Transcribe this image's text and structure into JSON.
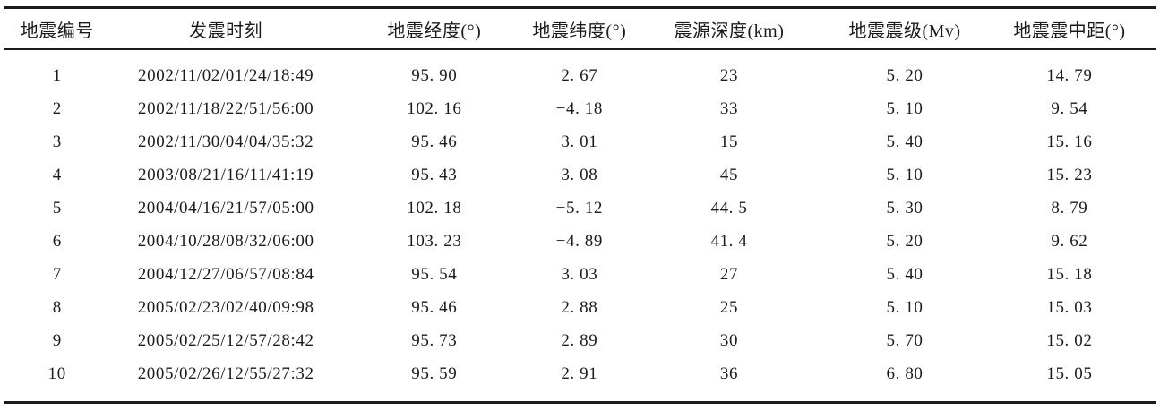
{
  "table": {
    "columns": [
      {
        "key": "event-id",
        "label": "地震编号"
      },
      {
        "key": "origin-time",
        "label": "发震时刻"
      },
      {
        "key": "longitude",
        "label": "地震经度(°)"
      },
      {
        "key": "latitude",
        "label": "地震纬度(°)"
      },
      {
        "key": "depth",
        "label": "震源深度(km)"
      },
      {
        "key": "magnitude",
        "label": "地震震级(Mv)"
      },
      {
        "key": "epicentral-distance",
        "label": "地震震中距(°)"
      }
    ],
    "rows": [
      [
        "1",
        "2002/11/02/01/24/18:49",
        "95. 90",
        "2. 67",
        "23",
        "5. 20",
        "14. 79"
      ],
      [
        "2",
        "2002/11/18/22/51/56:00",
        "102. 16",
        "−4. 18",
        "33",
        "5. 10",
        "9. 54"
      ],
      [
        "3",
        "2002/11/30/04/04/35:32",
        "95. 46",
        "3. 01",
        "15",
        "5. 40",
        "15. 16"
      ],
      [
        "4",
        "2003/08/21/16/11/41:19",
        "95. 43",
        "3. 08",
        "45",
        "5. 10",
        "15. 23"
      ],
      [
        "5",
        "2004/04/16/21/57/05:00",
        "102. 18",
        "−5. 12",
        "44. 5",
        "5. 30",
        "8. 79"
      ],
      [
        "6",
        "2004/10/28/08/32/06:00",
        "103. 23",
        "−4. 89",
        "41. 4",
        "5. 20",
        "9. 62"
      ],
      [
        "7",
        "2004/12/27/06/57/08:84",
        "95. 54",
        "3. 03",
        "27",
        "5. 40",
        "15. 18"
      ],
      [
        "8",
        "2005/02/23/02/40/09:98",
        "95. 46",
        "2. 88",
        "25",
        "5. 10",
        "15. 03"
      ],
      [
        "9",
        "2005/02/25/12/57/28:42",
        "95. 73",
        "2. 89",
        "30",
        "5. 70",
        "15. 02"
      ],
      [
        "10",
        "2005/02/26/12/55/27:32",
        "95. 59",
        "2. 91",
        "36",
        "6. 80",
        "15. 05"
      ]
    ]
  },
  "chart_data": {
    "type": "table",
    "title": "",
    "columns": [
      "地震编号",
      "发震时刻",
      "地震经度(°)",
      "地震纬度(°)",
      "震源深度(km)",
      "地震震级(Mv)",
      "地震震中距(°)"
    ],
    "rows": [
      [
        1,
        "2002/11/02/01/24/18:49",
        95.9,
        2.67,
        23,
        5.2,
        14.79
      ],
      [
        2,
        "2002/11/18/22/51/56:00",
        102.16,
        -4.18,
        33,
        5.1,
        9.54
      ],
      [
        3,
        "2002/11/30/04/04/35:32",
        95.46,
        3.01,
        15,
        5.4,
        15.16
      ],
      [
        4,
        "2003/08/21/16/11/41:19",
        95.43,
        3.08,
        45,
        5.1,
        15.23
      ],
      [
        5,
        "2004/04/16/21/57/05:00",
        102.18,
        -5.12,
        44.5,
        5.3,
        8.79
      ],
      [
        6,
        "2004/10/28/08/32/06:00",
        103.23,
        -4.89,
        41.4,
        5.2,
        9.62
      ],
      [
        7,
        "2004/12/27/06/57/08:84",
        95.54,
        3.03,
        27,
        5.4,
        15.18
      ],
      [
        8,
        "2005/02/23/02/40/09:98",
        95.46,
        2.88,
        25,
        5.1,
        15.03
      ],
      [
        9,
        "2005/02/25/12/57/28:42",
        95.73,
        2.89,
        30,
        5.7,
        15.02
      ],
      [
        10,
        "2005/02/26/12/55/27:32",
        95.59,
        2.91,
        36,
        6.8,
        15.05
      ]
    ]
  }
}
